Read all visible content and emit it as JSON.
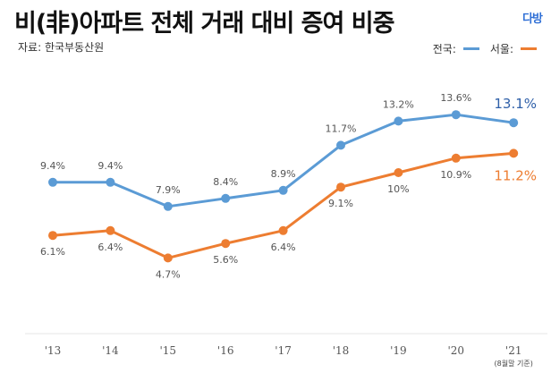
{
  "header": {
    "title": "비(非)아파트 전체 거래 대비 증여 비중",
    "source": "자료: 한국부동산원",
    "logo": "다방"
  },
  "chart_data": {
    "type": "line",
    "title": "비(非)아파트 전체 거래 대비 증여 비중",
    "xlabel": "",
    "ylabel": "",
    "categories": [
      "'13",
      "'14",
      "'15",
      "'16",
      "'17",
      "'18",
      "'19",
      "'20",
      "'21"
    ],
    "category_note": "(8월말 기준)",
    "series": [
      {
        "name": "전국",
        "color": "#5b9bd5",
        "label_color": "#2e5fa8",
        "values": [
          9.4,
          9.4,
          7.9,
          8.4,
          8.9,
          11.7,
          13.2,
          13.6,
          13.1
        ],
        "labels": [
          "9.4%",
          "9.4%",
          "7.9%",
          "8.4%",
          "8.9%",
          "11.7%",
          "13.2%",
          "13.6%",
          "13.1%"
        ],
        "label_position": "above"
      },
      {
        "name": "서울",
        "color": "#ed7d31",
        "label_color": "#ed7d31",
        "values": [
          6.1,
          6.4,
          4.7,
          5.6,
          6.4,
          9.1,
          10.0,
          10.9,
          11.2
        ],
        "labels": [
          "6.1%",
          "6.4%",
          "4.7%",
          "5.6%",
          "6.4%",
          "9.1%",
          "10%",
          "10.9%",
          "11.2%"
        ],
        "label_position": "below"
      }
    ],
    "legend": {
      "position": "top-right",
      "entries": [
        {
          "label": "전국:",
          "color": "#5b9bd5"
        },
        {
          "label": "서울:",
          "color": "#ed7d31"
        }
      ]
    },
    "ylim": [
      0,
      15
    ],
    "grid": false
  }
}
